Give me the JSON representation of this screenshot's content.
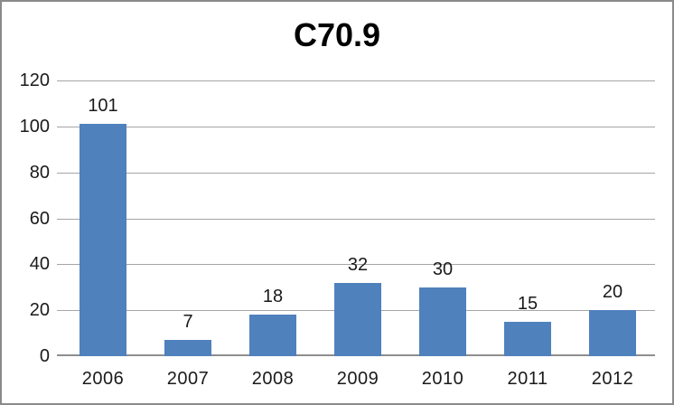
{
  "chart_data": {
    "type": "bar",
    "title": "C70.9",
    "categories": [
      "2006",
      "2007",
      "2008",
      "2009",
      "2010",
      "2011",
      "2012"
    ],
    "values": [
      101,
      7,
      18,
      32,
      30,
      15,
      20
    ],
    "xlabel": "",
    "ylabel": "",
    "yticks": [
      0,
      20,
      40,
      60,
      80,
      100,
      120
    ],
    "ylim": [
      0,
      120
    ],
    "grid": true,
    "legend_position": "none",
    "colors": {
      "bar": "#4f81bd",
      "gridline": "#a6a6a6",
      "axis_line": "#8e8e8e",
      "title_text": "#000000",
      "tick_text": "#1a1a1a",
      "data_label_text": "#1a1a1a",
      "background": "#ffffff",
      "frame_border": "#8a8a8a"
    }
  }
}
